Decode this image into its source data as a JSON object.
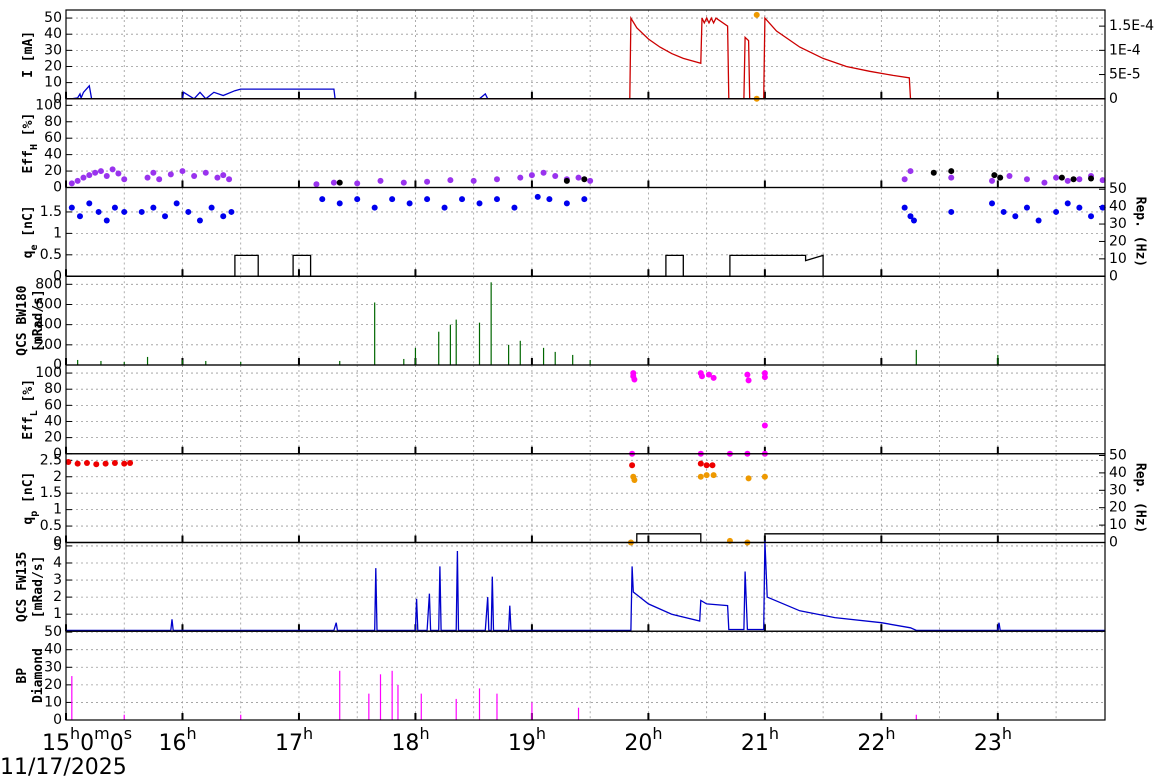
{
  "date": "11/17/2025",
  "x_axis": {
    "xlim": [
      15,
      23.92
    ],
    "xticks": [
      {
        "value": 15,
        "label": "15h0m0s"
      },
      {
        "value": 16,
        "label": "16h"
      },
      {
        "value": 17,
        "label": "17h"
      },
      {
        "value": 18,
        "label": "18h"
      },
      {
        "value": 19,
        "label": "19h"
      },
      {
        "value": 20,
        "label": "20h"
      },
      {
        "value": 21,
        "label": "21h"
      },
      {
        "value": 22,
        "label": "22h"
      },
      {
        "value": 23,
        "label": "23h"
      }
    ],
    "xgrid": [
      15.5,
      16,
      16.5,
      17,
      17.5,
      18,
      18.5,
      19,
      19.5,
      20,
      20.5,
      21,
      21.5,
      22,
      22.5,
      23,
      23.5
    ]
  },
  "chart_data": [
    {
      "type": "timeseries",
      "ylabel": [
        [
          "I [mA]"
        ]
      ],
      "ylim": [
        0,
        55
      ],
      "yticks": [
        0,
        10,
        20,
        30,
        40,
        50
      ],
      "y2lim": [
        0,
        0.0001833
      ],
      "y2ticks": [
        0,
        {
          "value": 5e-05,
          "label": "5E-5"
        },
        {
          "value": 0.0001,
          "label": "1E-4"
        },
        {
          "value": 0.00015,
          "label": "1.5E-4"
        }
      ],
      "series": [
        {
          "color": "#0000cc",
          "style": "line",
          "x": [
            15,
            15.05,
            15.1,
            15.12,
            15.13,
            15.15,
            15.2,
            15.22,
            16,
            16.01,
            16.1,
            16.15,
            16.2,
            16.27,
            16.35,
            16.45,
            16.5,
            17.3,
            17.31,
            18.55,
            18.6,
            18.62,
            23.92
          ],
          "values": [
            0,
            0,
            0.5,
            3,
            0.5,
            4,
            8,
            0,
            0,
            4,
            0,
            4,
            0,
            4,
            2,
            5,
            6,
            6,
            0,
            0,
            3,
            0,
            0
          ]
        },
        {
          "color": "#cc0000",
          "style": "line",
          "x": [
            15,
            19.84,
            19.85,
            19.9,
            20,
            20.1,
            20.2,
            20.3,
            20.45,
            20.46,
            20.48,
            20.5,
            20.52,
            20.54,
            20.56,
            20.58,
            20.68,
            20.69,
            20.82,
            20.83,
            20.86,
            20.87,
            20.99,
            21,
            21.1,
            21.3,
            21.5,
            21.7,
            21.9,
            22.1,
            22.24,
            22.25,
            23.92
          ],
          "values": [
            0,
            0,
            50,
            44,
            37,
            32,
            28,
            25,
            22,
            50,
            47,
            50,
            47,
            50,
            47,
            50,
            45,
            0,
            0,
            38,
            36,
            0,
            0,
            50,
            42,
            32,
            25,
            20,
            17,
            14.5,
            13,
            0,
            0
          ]
        },
        {
          "color": "#ee9900",
          "style": "points",
          "x": [
            20.93,
            20.93
          ],
          "values": [
            52,
            0
          ]
        }
      ]
    },
    {
      "type": "timeseries",
      "ylabel": [
        [
          "Eff",
          "H",
          " [%]"
        ]
      ],
      "ylim": [
        0,
        108
      ],
      "yticks": [
        0,
        20,
        40,
        60,
        80,
        100
      ],
      "series": [
        {
          "color": "#9933ee",
          "style": "points",
          "x": [
            15.05,
            15.1,
            15.15,
            15.2,
            15.25,
            15.3,
            15.35,
            15.4,
            15.45,
            15.5,
            15.7,
            15.75,
            15.8,
            15.9,
            16,
            16.1,
            16.2,
            16.3,
            16.35,
            16.4,
            17.15,
            17.3,
            17.5,
            17.7,
            17.9,
            18.1,
            18.3,
            18.5,
            18.7,
            18.9,
            19,
            19.1,
            19.2,
            19.3,
            19.4,
            19.5,
            22.2,
            22.25,
            22.6,
            22.95,
            23.1,
            23.25,
            23.4,
            23.5,
            23.6,
            23.7,
            23.8,
            23.9
          ],
          "values": [
            5,
            8,
            12,
            15,
            18,
            20,
            14,
            22,
            17,
            10,
            12,
            18,
            10,
            16,
            20,
            14,
            18,
            12,
            15,
            10,
            4,
            6,
            5,
            8,
            6,
            7,
            9,
            8,
            10,
            12,
            15,
            18,
            14,
            10,
            12,
            8,
            10,
            20,
            12,
            8,
            14,
            10,
            6,
            12,
            8,
            10,
            14,
            9
          ]
        },
        {
          "color": "#000000",
          "style": "points",
          "x": [
            17.35,
            19.3,
            19.45,
            22.45,
            22.6,
            22.97,
            23.02,
            23.55,
            23.65,
            23.8
          ],
          "values": [
            6,
            8,
            10,
            18,
            20,
            15,
            12,
            12,
            10,
            11
          ]
        }
      ]
    },
    {
      "type": "timeseries",
      "ylabel": [
        [
          "q",
          "e",
          " [nC]"
        ]
      ],
      "ylim": [
        0,
        2.07
      ],
      "yticks": [
        0,
        0.5,
        1,
        1.5
      ],
      "y2lim": [
        0,
        51
      ],
      "y2ticks": [
        0,
        10,
        20,
        30,
        40,
        50
      ],
      "y2label": "Rep. (Hz)",
      "series": [
        {
          "color": "#0000ee",
          "style": "points",
          "x": [
            15.05,
            15.12,
            15.2,
            15.28,
            15.35,
            15.42,
            15.5,
            15.65,
            15.75,
            15.85,
            15.95,
            16.05,
            16.15,
            16.25,
            16.35,
            16.42,
            17.2,
            17.35,
            17.5,
            17.65,
            17.8,
            17.95,
            18.1,
            18.25,
            18.4,
            18.55,
            18.7,
            18.85,
            19.05,
            19.15,
            19.3,
            19.45,
            22.2,
            22.25,
            22.28,
            22.6,
            22.95,
            23.05,
            23.15,
            23.25,
            23.35,
            23.5,
            23.6,
            23.7,
            23.8,
            23.9
          ],
          "values": [
            1.6,
            1.4,
            1.7,
            1.5,
            1.3,
            1.6,
            1.5,
            1.5,
            1.6,
            1.4,
            1.7,
            1.5,
            1.3,
            1.6,
            1.4,
            1.5,
            1.8,
            1.7,
            1.8,
            1.6,
            1.8,
            1.7,
            1.8,
            1.6,
            1.8,
            1.7,
            1.8,
            1.6,
            1.85,
            1.8,
            1.7,
            1.8,
            1.6,
            1.4,
            1.3,
            1.5,
            1.7,
            1.5,
            1.4,
            1.6,
            1.3,
            1.5,
            1.7,
            1.6,
            1.4,
            1.6
          ]
        },
        {
          "color": "#000000",
          "style": "line",
          "axis": "y2",
          "x": [
            15,
            16.45,
            16.45,
            16.65,
            16.65,
            16.95,
            16.95,
            17.1,
            17.1,
            20.15,
            20.15,
            20.3,
            20.3,
            20.7,
            20.7,
            21.35,
            21.35,
            21.5,
            21.5,
            23.92
          ],
          "values": [
            0,
            0,
            12,
            12,
            0,
            0,
            12,
            12,
            0,
            0,
            12,
            12,
            0,
            0,
            12,
            12,
            9,
            12,
            0,
            0
          ]
        }
      ]
    },
    {
      "type": "timeseries",
      "ylabel": [
        [
          "QCS BW180"
        ],
        [
          "[mRad/s]"
        ]
      ],
      "ylim": [
        0,
        880
      ],
      "yticks": [
        0,
        200,
        400,
        600,
        800
      ],
      "series": [
        {
          "color": "#006600",
          "style": "spikes",
          "x": [
            15.1,
            15.3,
            15.5,
            15.7,
            16,
            16.2,
            16.5,
            17.35,
            17.65,
            17.9,
            18,
            18.2,
            18.3,
            18.35,
            18.55,
            18.65,
            18.8,
            18.9,
            19.1,
            19.2,
            19.35,
            19.5,
            22.3,
            23
          ],
          "values": [
            50,
            40,
            30,
            80,
            50,
            40,
            30,
            40,
            620,
            60,
            170,
            330,
            400,
            450,
            420,
            820,
            200,
            240,
            170,
            130,
            100,
            50,
            150,
            100
          ]
        }
      ]
    },
    {
      "type": "timeseries",
      "ylabel": [
        [
          "Eff",
          "L",
          " [%]"
        ]
      ],
      "ylim": [
        0,
        110
      ],
      "yticks": [
        0,
        20,
        40,
        60,
        80,
        100
      ],
      "series": [
        {
          "color": "#ff00ff",
          "style": "points",
          "x": [
            19.87,
            19.87,
            19.88,
            20.45,
            20.46,
            20.52,
            20.56,
            20.85,
            20.86,
            21,
            21,
            21,
            19.86,
            20.45,
            20.7,
            20.85,
            21
          ],
          "values": [
            100,
            96,
            92,
            100,
            96,
            98,
            94,
            98,
            91,
            100,
            95,
            35,
            0,
            0,
            0,
            0,
            0
          ]
        }
      ]
    },
    {
      "type": "timeseries",
      "ylabel": [
        [
          "q",
          "p",
          " [nC]"
        ]
      ],
      "ylim": [
        0,
        2.7
      ],
      "yticks": [
        0,
        0.5,
        1,
        1.5,
        2,
        2.5
      ],
      "y2lim": [
        0,
        51
      ],
      "y2ticks": [
        0,
        10,
        20,
        30,
        40,
        50
      ],
      "y2label": "Rep. (Hz)",
      "series": [
        {
          "color": "#ee0000",
          "style": "points",
          "x": [
            15.02,
            15.1,
            15.18,
            15.26,
            15.34,
            15.42,
            15.5,
            15.55,
            19.86,
            20.45,
            20.5,
            20.55
          ],
          "values": [
            2.45,
            2.4,
            2.42,
            2.38,
            2.4,
            2.42,
            2.4,
            2.42,
            2.35,
            2.4,
            2.35,
            2.35
          ]
        },
        {
          "color": "#ee9900",
          "style": "points",
          "x": [
            19.87,
            19.88,
            20.45,
            20.5,
            20.56,
            20.86,
            21,
            19.85,
            20.7,
            20.85
          ],
          "values": [
            2,
            1.9,
            2,
            2.05,
            2.05,
            1.95,
            2,
            0,
            0.05,
            0
          ]
        },
        {
          "color": "#000000",
          "style": "line",
          "axis": "y2",
          "x": [
            15,
            19.9,
            19.9,
            20.45,
            20.45,
            21,
            21,
            23.92
          ],
          "values": [
            0,
            0,
            5,
            5,
            0,
            0,
            5,
            5
          ]
        }
      ]
    },
    {
      "type": "timeseries",
      "ylabel": [
        [
          "QCS FW135"
        ],
        [
          "[mRad/s]"
        ]
      ],
      "ylim": [
        0,
        5.2
      ],
      "yticks": [
        1,
        2,
        3,
        4,
        5
      ],
      "series": [
        {
          "color": "#0000cc",
          "style": "line",
          "x": [
            15,
            15.9,
            15.91,
            15.92,
            17.3,
            17.32,
            17.33,
            17.65,
            17.66,
            17.67,
            18,
            18.01,
            18.02,
            18.1,
            18.12,
            18.13,
            18.2,
            18.21,
            18.22,
            18.35,
            18.36,
            18.37,
            18.6,
            18.62,
            18.63,
            18.65,
            18.66,
            18.67,
            18.8,
            18.81,
            18.82,
            19.85,
            19.86,
            19.87,
            20,
            20.2,
            20.44,
            20.45,
            20.5,
            20.68,
            20.69,
            20.82,
            20.83,
            20.85,
            20.99,
            21,
            21.02,
            21.3,
            21.6,
            22,
            22.25,
            22.3,
            23,
            23.01,
            23.02,
            23.92
          ],
          "values": [
            0.05,
            0.05,
            0.7,
            0.05,
            0.05,
            0.5,
            0.05,
            0.05,
            3.7,
            0.05,
            0.05,
            1.9,
            0.05,
            0.05,
            2.2,
            0.05,
            0.05,
            3.8,
            0.05,
            0.05,
            4.7,
            0.05,
            0.05,
            2,
            0.05,
            0.05,
            3.2,
            0.05,
            0.05,
            1.5,
            0.05,
            0.05,
            3.8,
            2.3,
            1.6,
            1,
            0.6,
            1.8,
            1.6,
            1.5,
            0.1,
            0.1,
            3.5,
            0.1,
            0.1,
            5.3,
            2,
            1.2,
            0.8,
            0.5,
            0.2,
            0.05,
            0.05,
            0.5,
            0.05,
            0.05
          ]
        }
      ]
    },
    {
      "type": "timeseries",
      "ylabel": [
        [
          "BP"
        ],
        [
          "Diamond"
        ]
      ],
      "ylim": [
        0,
        50.5
      ],
      "yticks": [
        0,
        10,
        20,
        30,
        40,
        50
      ],
      "series": [
        {
          "color": "#ff00ff",
          "style": "spikes",
          "x": [
            15.05,
            15.5,
            16.5,
            17.35,
            17.6,
            17.7,
            17.8,
            17.85,
            18.05,
            18.35,
            18.55,
            18.7,
            19,
            19.4,
            22.3
          ],
          "values": [
            25,
            3,
            3,
            28,
            15,
            26,
            28,
            20,
            15,
            12,
            18,
            15,
            10,
            7,
            3
          ]
        }
      ]
    }
  ]
}
